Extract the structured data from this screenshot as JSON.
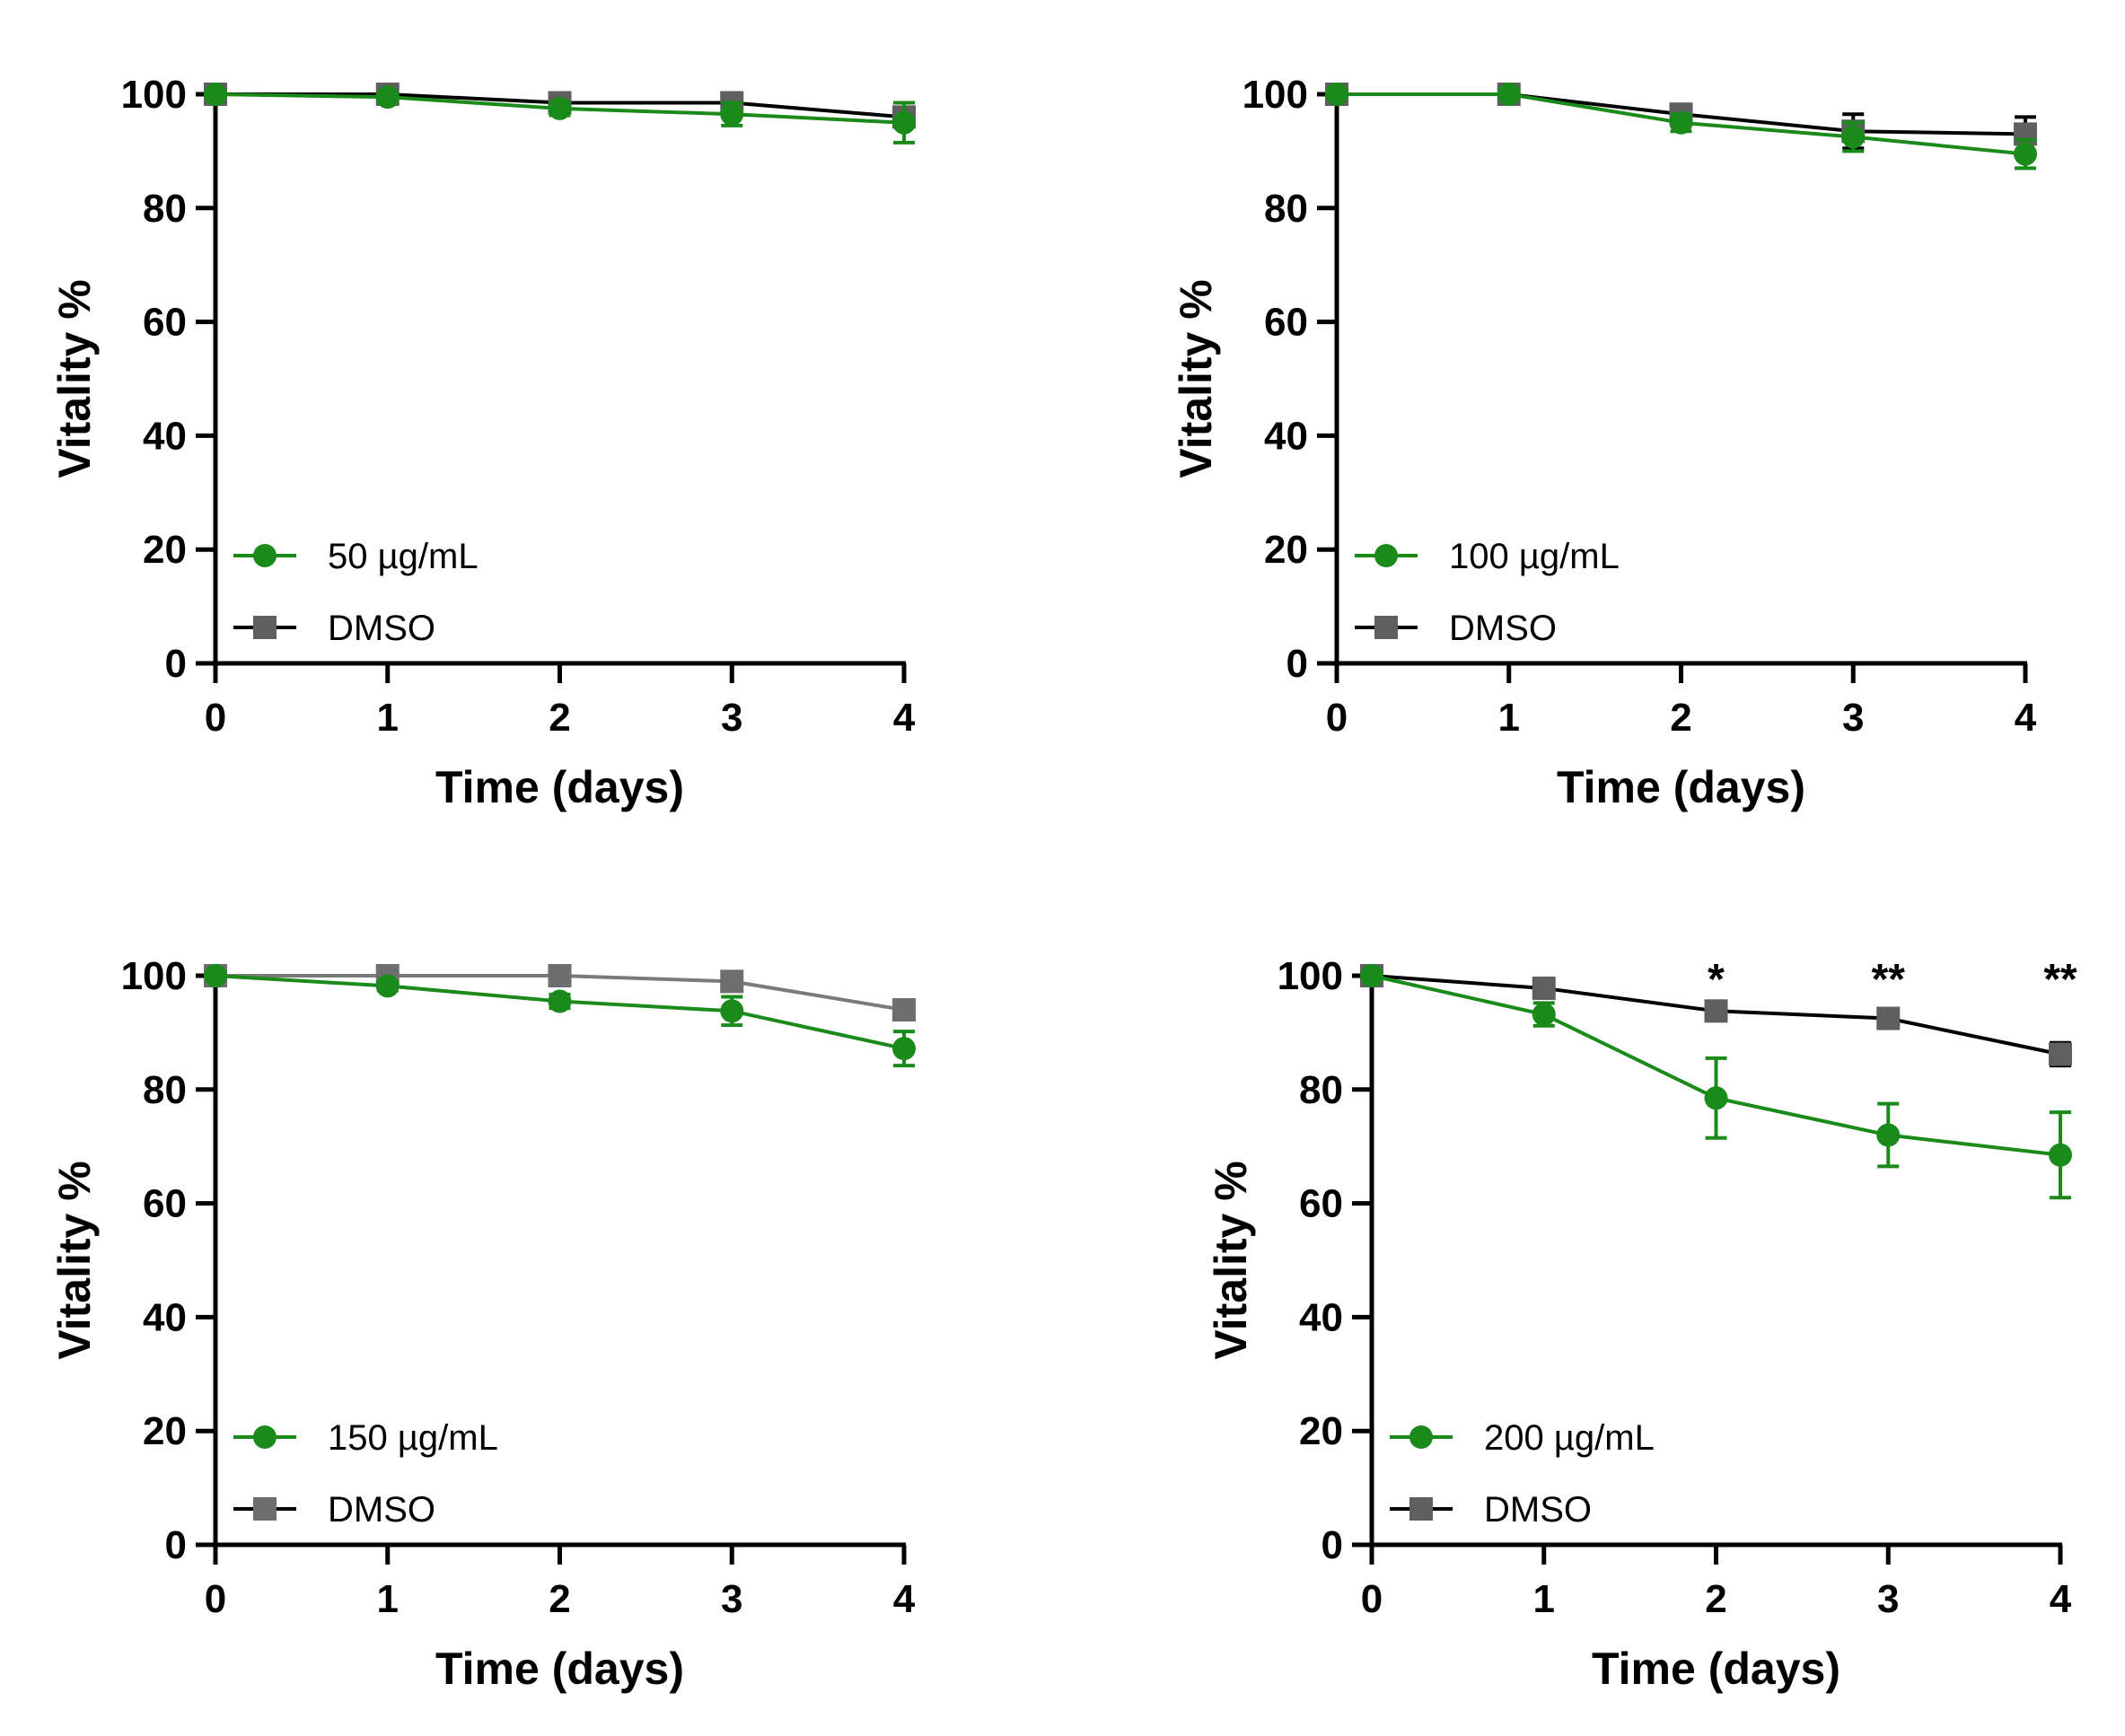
{
  "chart_data": [
    {
      "type": "line",
      "panel": "top-left",
      "xlabel": "Time (days)",
      "ylabel": "Vitality %",
      "xlim": [
        0,
        4
      ],
      "ylim": [
        0,
        100
      ],
      "xticks": [
        0,
        1,
        2,
        3,
        4
      ],
      "yticks": [
        0,
        20,
        40,
        60,
        80,
        100
      ],
      "legend_position": "bottom-left",
      "series": [
        {
          "name": "50 µg/mL",
          "marker": "circle",
          "color": "#1a8a1a",
          "x": [
            0,
            1,
            2,
            3,
            4
          ],
          "values": [
            100,
            99.5,
            97.5,
            96.5,
            95
          ],
          "errors": [
            0,
            0.8,
            1.2,
            2,
            3.5
          ]
        },
        {
          "name": "DMSO",
          "marker": "square",
          "color": "#5f5f5f",
          "line_color": "#000000",
          "x": [
            0,
            1,
            2,
            3,
            4
          ],
          "values": [
            100,
            100,
            98.5,
            98.5,
            96
          ],
          "errors": [
            0,
            0.5,
            1,
            1,
            1.5
          ]
        }
      ],
      "annotations": []
    },
    {
      "type": "line",
      "panel": "top-right",
      "xlabel": "Time (days)",
      "ylabel": "Vitality %",
      "xlim": [
        0,
        4
      ],
      "ylim": [
        0,
        100
      ],
      "xticks": [
        0,
        1,
        2,
        3,
        4
      ],
      "yticks": [
        0,
        20,
        40,
        60,
        80,
        100
      ],
      "legend_position": "bottom-left",
      "series": [
        {
          "name": "100 µg/mL",
          "marker": "circle",
          "color": "#1a8a1a",
          "x": [
            0,
            1,
            2,
            3,
            4
          ],
          "values": [
            100,
            100,
            95,
            92.5,
            89.5
          ],
          "errors": [
            0,
            0.5,
            1.5,
            2.5,
            2.5
          ]
        },
        {
          "name": "DMSO",
          "marker": "square",
          "color": "#5f5f5f",
          "line_color": "#000000",
          "x": [
            0,
            1,
            2,
            3,
            4
          ],
          "values": [
            100,
            100,
            96.5,
            93.5,
            93
          ],
          "errors": [
            0,
            0.5,
            1.5,
            3,
            3
          ]
        }
      ],
      "annotations": []
    },
    {
      "type": "line",
      "panel": "bottom-left",
      "xlabel": "Time (days)",
      "ylabel": "Vitality %",
      "xlim": [
        0,
        4
      ],
      "ylim": [
        0,
        100
      ],
      "xticks": [
        0,
        1,
        2,
        3,
        4
      ],
      "yticks": [
        0,
        20,
        40,
        60,
        80,
        100
      ],
      "legend_position": "bottom-left",
      "series": [
        {
          "name": "150 µg/mL",
          "marker": "circle",
          "color": "#1a8a1a",
          "x": [
            0,
            1,
            2,
            3,
            4
          ],
          "values": [
            100,
            98.2,
            95.5,
            93.8,
            87.2
          ],
          "errors": [
            0,
            0.8,
            1.2,
            2.5,
            3
          ]
        },
        {
          "name": "DMSO",
          "marker": "square",
          "color": "#6e6e6e",
          "line_color": "#7a7a7a",
          "x": [
            0,
            1,
            2,
            3,
            4
          ],
          "values": [
            100,
            100,
            100,
            99,
            94
          ],
          "errors": [
            0,
            0.4,
            0.4,
            0.8,
            1
          ]
        }
      ],
      "annotations": []
    },
    {
      "type": "line",
      "panel": "bottom-right",
      "xlabel": "Time (days)",
      "ylabel": "Vitality %",
      "xlim": [
        0,
        4
      ],
      "ylim": [
        0,
        100
      ],
      "xticks": [
        0,
        1,
        2,
        3,
        4
      ],
      "yticks": [
        0,
        20,
        40,
        60,
        80,
        100
      ],
      "legend_position": "bottom-left",
      "series": [
        {
          "name": "200 µg/mL",
          "marker": "circle",
          "color": "#1a8a1a",
          "x": [
            0,
            1,
            2,
            3,
            4
          ],
          "values": [
            100,
            93.2,
            78.5,
            72,
            68.5
          ],
          "errors": [
            0,
            2,
            7,
            5.5,
            7.5
          ]
        },
        {
          "name": "DMSO",
          "marker": "square",
          "color": "#5f5f5f",
          "line_color": "#000000",
          "x": [
            0,
            1,
            2,
            3,
            4
          ],
          "values": [
            100,
            97.8,
            93.8,
            92.5,
            86.2
          ],
          "errors": [
            0,
            1,
            1.5,
            1.5,
            2
          ]
        }
      ],
      "annotations": [
        {
          "x": 2,
          "text": "*"
        },
        {
          "x": 3,
          "text": "**"
        },
        {
          "x": 4,
          "text": "**"
        }
      ]
    }
  ]
}
